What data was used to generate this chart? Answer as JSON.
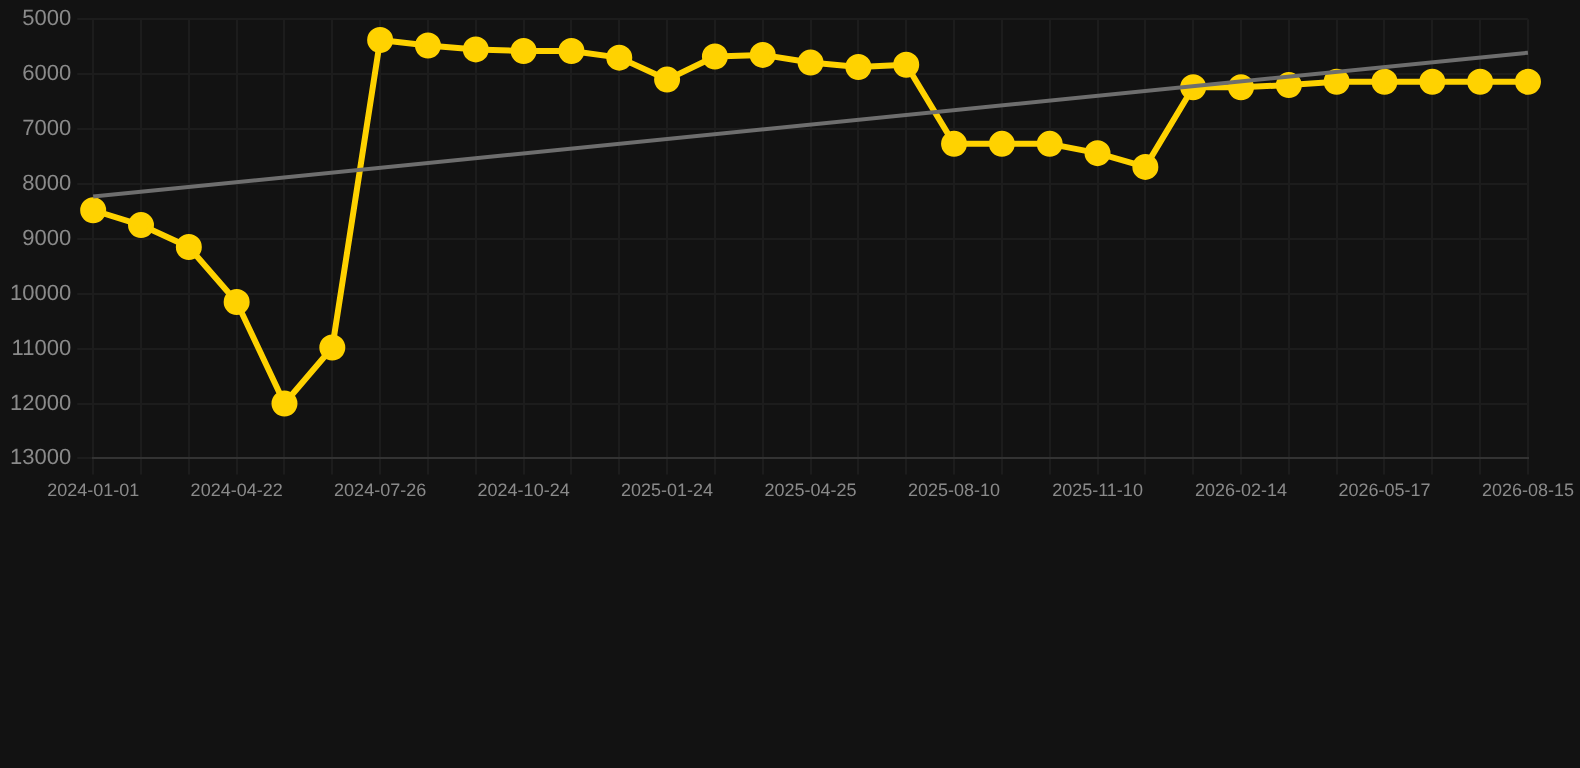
{
  "chart_data": {
    "type": "line",
    "categories": [
      "2024-01-01",
      null,
      null,
      "2024-04-22",
      null,
      null,
      "2024-07-26",
      null,
      null,
      "2024-10-24",
      null,
      null,
      "2025-01-24",
      null,
      null,
      "2025-04-25",
      null,
      null,
      "2025-08-10",
      null,
      null,
      "2025-11-10",
      null,
      null,
      "2026-02-14",
      null,
      null,
      "2026-05-17",
      null,
      null,
      "2026-08-15"
    ],
    "series": [
      {
        "type": "line",
        "color": "#ffd200",
        "marker": "circle",
        "values": [
          8480,
          8750,
          9150,
          10150,
          12000,
          10980,
          5380,
          5480,
          5550,
          5580,
          5580,
          5700,
          6100,
          5680,
          5650,
          5790,
          5870,
          5830,
          7270,
          7270,
          7270,
          7440,
          7690,
          6240,
          6240,
          6200,
          6140,
          6140,
          6140,
          6140,
          6140
        ]
      },
      {
        "type": "line",
        "color": "#6e6e6e",
        "marker": "none",
        "values": [
          8230,
          null,
          null,
          null,
          null,
          null,
          null,
          null,
          null,
          null,
          null,
          null,
          null,
          null,
          null,
          null,
          null,
          null,
          null,
          null,
          null,
          null,
          null,
          null,
          null,
          null,
          null,
          null,
          null,
          null,
          5610
        ]
      }
    ],
    "ylim": [
      13000,
      5000
    ],
    "yticks": [
      5000,
      6000,
      7000,
      8000,
      9000,
      10000,
      11000,
      12000,
      13000
    ],
    "grid": true,
    "legend": false
  }
}
